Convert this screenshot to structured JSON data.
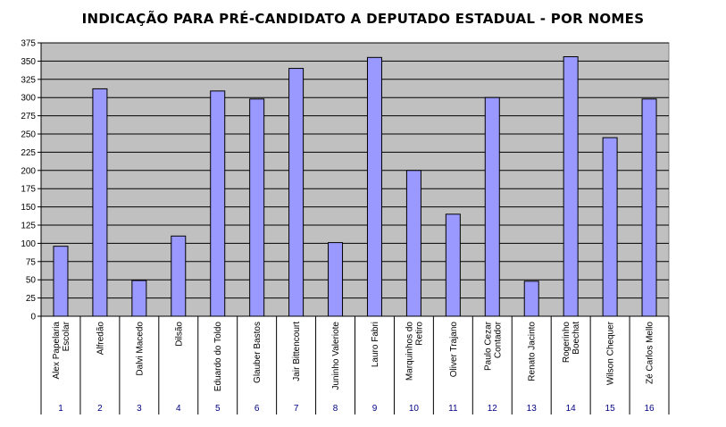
{
  "chart_data": {
    "type": "bar",
    "title": "INDICAÇÃO PARA PRÉ-CANDIDATO A DEPUTADO ESTADUAL - POR NOMES",
    "xlabel": "",
    "ylabel": "",
    "ylim": [
      0,
      375
    ],
    "yticks": [
      "0",
      "25",
      "50",
      "75",
      "100",
      "125",
      "150",
      "175",
      "200",
      "225",
      "250",
      "275",
      "300",
      "325",
      "350",
      "375"
    ],
    "grid": true,
    "legend": "none",
    "colors": {
      "bar": "#9999ff",
      "bar_edge": "#000000",
      "plot_bg": "#c0c0c0",
      "index_text": "#000080"
    },
    "categories": [
      [
        "Alex Papelaria",
        "Escolar"
      ],
      [
        "Alfredão"
      ],
      [
        "Dalvi Macedo"
      ],
      [
        "Dilsão"
      ],
      [
        "Eduardo do Toldo"
      ],
      [
        "Glauber Bastos"
      ],
      [
        "Jair Bittencourt"
      ],
      [
        "Juninho Valeriote"
      ],
      [
        "Lauro Fabri"
      ],
      [
        "Marquinhos do",
        "Retiro"
      ],
      [
        "Oliver Trajano"
      ],
      [
        "Paulo Cezar",
        "Contador"
      ],
      [
        "Renato Jacinto"
      ],
      [
        "Rogerinho",
        "Boechat"
      ],
      [
        "Wilson Chequer"
      ],
      [
        "Zé Carlos Mello"
      ]
    ],
    "index_labels": [
      "1",
      "2",
      "3",
      "4",
      "5",
      "6",
      "7",
      "8",
      "9",
      "10",
      "11",
      "12",
      "13",
      "14",
      "15",
      "16"
    ],
    "values": [
      96,
      312,
      49,
      110,
      309,
      298,
      340,
      101,
      355,
      200,
      140,
      300,
      48,
      356,
      245,
      298
    ]
  }
}
